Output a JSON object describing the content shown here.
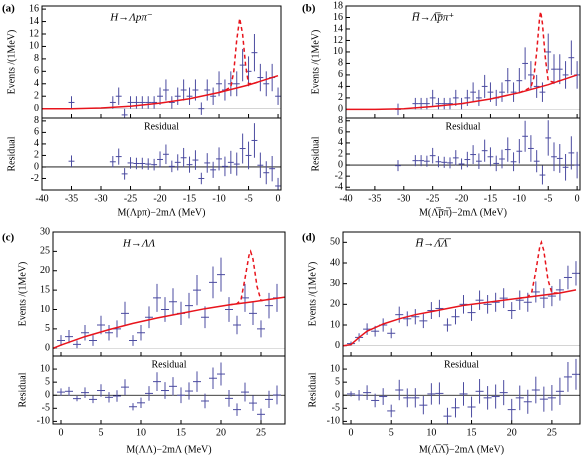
{
  "chart_data": [
    {
      "type": "errorbar",
      "panel_label": "(a)",
      "title": "H→Λpπ⁻",
      "xlabel": "M(Λpπ)−2mΛ (MeV)",
      "ylabel": "Events /(1MeV)",
      "residual_title": "Residual",
      "residual_ylabel": "Residual",
      "xlim": [
        -40,
        0.5
      ],
      "xticks": [
        -40,
        -35,
        -30,
        -25,
        -20,
        -15,
        -10,
        -5,
        0
      ],
      "ylim": [
        -1.5,
        16.5
      ],
      "yticks": [
        0,
        2,
        4,
        6,
        8,
        10,
        12,
        14,
        16
      ],
      "residual_ylim": [
        -4,
        8.5
      ],
      "residual_yticks": [
        -2,
        0,
        2,
        4,
        6,
        8
      ],
      "point_color": "#4b4ba0",
      "x": [
        -35,
        -28,
        -27,
        -26,
        -25,
        -24,
        -23,
        -22,
        -21,
        -20,
        -19,
        -18,
        -17,
        -16,
        -15,
        -14,
        -13,
        -12,
        -11,
        -10,
        -9,
        -8,
        -7,
        -6,
        -5,
        -4,
        -3,
        -2,
        -1,
        0
      ],
      "values": [
        1,
        1,
        2,
        -1,
        1,
        1,
        1,
        1,
        1,
        2,
        3,
        1,
        2,
        3,
        2,
        3,
        0,
        3,
        2,
        4,
        3,
        4,
        4,
        7,
        6,
        9,
        5,
        4,
        5,
        2
      ],
      "errors": [
        1,
        1,
        1.4,
        1,
        1,
        1,
        1,
        1,
        1,
        1.4,
        1.7,
        1,
        1.4,
        1.7,
        1.4,
        1.7,
        1,
        1.7,
        1.4,
        2,
        1.7,
        2,
        2,
        2.6,
        2.4,
        3,
        2.2,
        2,
        2.2,
        1.4
      ],
      "residuals": [
        1,
        0.9,
        1.8,
        -1.2,
        0.7,
        0.6,
        0.6,
        0.5,
        0.4,
        1.3,
        2.2,
        0.1,
        0.8,
        1.6,
        0.4,
        1.2,
        -2,
        0.7,
        -0.5,
        1.4,
        0.1,
        0.8,
        0.5,
        3.2,
        2,
        4.6,
        0.3,
        -1,
        -0.3,
        -3.3
      ],
      "fit": {
        "color": "#e8141c",
        "x": [
          -40,
          -35,
          -30,
          -25,
          -20,
          -15,
          -10,
          -5,
          0
        ],
        "y": [
          0,
          0,
          0.1,
          0.4,
          0.9,
          1.6,
          2.6,
          3.8,
          5.3
        ]
      },
      "signal": {
        "color": "#e8141c",
        "x": [
          -10,
          -9,
          -8,
          -7.5,
          -7,
          -6.5,
          -6,
          -5.5,
          -5,
          -4,
          -3
        ],
        "y": [
          2.6,
          2.9,
          3.5,
          6,
          11,
          14.5,
          12,
          7,
          4,
          4.1,
          4.4
        ]
      }
    },
    {
      "type": "errorbar",
      "panel_label": "(b)",
      "title": "H̅→Λ̅p̅π⁺",
      "xlabel": "M(Λ̅p̅π̅)−2mΛ (MeV)",
      "ylabel": "Events /(1MeV)",
      "residual_title": "Residual",
      "residual_ylabel": "Residual",
      "xlim": [
        -40,
        0.5
      ],
      "xticks": [
        -40,
        -35,
        -30,
        -25,
        -20,
        -15,
        -10,
        -5,
        0
      ],
      "ylim": [
        -1.5,
        18
      ],
      "yticks": [
        0,
        2,
        4,
        6,
        8,
        10,
        12,
        14,
        16,
        18
      ],
      "residual_ylim": [
        -4.5,
        8.5
      ],
      "residual_yticks": [
        -4,
        -2,
        0,
        2,
        4,
        6,
        8
      ],
      "point_color": "#4b4ba0",
      "x": [
        -31,
        -28,
        -27,
        -26,
        -25,
        -24,
        -23,
        -22,
        -21,
        -20,
        -19,
        -18,
        -17,
        -16,
        -15,
        -14,
        -13,
        -12,
        -11,
        -10,
        -9,
        -8,
        -7,
        -6,
        -5,
        -4,
        -3,
        -2,
        -1,
        0
      ],
      "values": [
        0,
        1,
        1,
        1,
        2,
        1,
        1,
        1,
        2,
        1,
        2,
        3,
        2,
        4,
        3,
        2,
        3,
        5,
        3,
        5,
        8,
        6,
        4,
        3,
        10,
        7,
        7,
        6,
        9,
        6
      ],
      "errors": [
        1,
        1,
        1,
        1,
        1.4,
        1,
        1,
        1,
        1.4,
        1,
        1.4,
        1.7,
        1.4,
        2,
        1.7,
        1.4,
        1.7,
        2.2,
        1.7,
        2.2,
        2.8,
        2.4,
        2,
        1.7,
        3.2,
        2.6,
        2.6,
        2.4,
        3,
        2.4
      ],
      "residuals": [
        -0.1,
        0.8,
        0.8,
        0.7,
        1.7,
        0.6,
        0.5,
        0.4,
        1.3,
        0.2,
        1,
        1.9,
        0.7,
        2.6,
        1.5,
        0.3,
        1.1,
        2.8,
        0.6,
        2.5,
        5.2,
        3,
        0.7,
        -1.8,
        4.9,
        1.5,
        1.2,
        -0.4,
        2.2,
        0
      ],
      "fit": {
        "color": "#e8141c",
        "x": [
          -40,
          -35,
          -30,
          -25,
          -20,
          -15,
          -10,
          -5,
          0
        ],
        "y": [
          0,
          0,
          0.1,
          0.5,
          1,
          1.8,
          2.9,
          4.3,
          6
        ]
      },
      "signal": {
        "color": "#e8141c",
        "x": [
          -10,
          -9,
          -8,
          -7.5,
          -7,
          -6.5,
          -6.3,
          -6,
          -5.5,
          -5,
          -4,
          -3
        ],
        "y": [
          2.9,
          3.3,
          3.9,
          5.5,
          10,
          16,
          17,
          15,
          9,
          5,
          4.7,
          5
        ]
      }
    },
    {
      "type": "errorbar",
      "panel_label": "(c)",
      "title": "H→ΛΛ",
      "xlabel": "M(ΛΛ)−2mΛ (MeV)",
      "ylabel": "Events /(1MeV)",
      "residual_title": "Residual",
      "residual_ylabel": "Residual",
      "xlim": [
        -1,
        28
      ],
      "xticks": [
        0,
        5,
        10,
        15,
        20,
        25
      ],
      "ylim": [
        -2,
        30
      ],
      "yticks": [
        0,
        5,
        10,
        15,
        20,
        25,
        30
      ],
      "residual_ylim": [
        -11,
        15
      ],
      "residual_yticks": [
        -10,
        -5,
        0,
        5,
        10
      ],
      "point_color": "#4b4ba0",
      "x": [
        0,
        1,
        2,
        3,
        4,
        5,
        6,
        7,
        8,
        9,
        10,
        11,
        12,
        13,
        14,
        15,
        16,
        17,
        18,
        19,
        20,
        21,
        22,
        23,
        24,
        25,
        26,
        27
      ],
      "values": [
        2,
        3,
        1,
        4,
        2,
        6,
        4,
        5,
        9,
        2,
        4,
        8,
        13,
        10,
        12,
        9,
        11,
        15,
        8,
        17,
        19,
        10,
        6,
        13,
        9,
        5,
        11,
        13
      ],
      "errors": [
        1.4,
        1.7,
        1,
        2,
        1.4,
        2.4,
        2,
        2.2,
        3,
        1.4,
        2,
        2.8,
        3.6,
        3.2,
        3.5,
        3,
        3.3,
        3.9,
        2.8,
        4.1,
        4.4,
        3.2,
        2.4,
        3.6,
        3,
        2.2,
        3.3,
        3.6
      ],
      "residuals": [
        1.2,
        1.5,
        -1.3,
        1,
        -1.6,
        1.8,
        -0.8,
        -0.3,
        3.1,
        -4.4,
        -2.9,
        0.7,
        5.2,
        1.8,
        3.4,
        0,
        1.6,
        5.2,
        -2.2,
        6.5,
        8.1,
        -1.2,
        -5.5,
        1.2,
        -3,
        -7.3,
        -1.6,
        0.1
      ],
      "fit": {
        "color": "#e8141c",
        "x": [
          -1,
          0,
          3,
          6,
          9,
          12,
          15,
          18,
          21,
          24,
          28
        ],
        "y": [
          0,
          0.8,
          3,
          4.8,
          6.4,
          7.8,
          9,
          10.2,
          11.2,
          12,
          13.2
        ]
      },
      "signal": {
        "color": "#e8141c",
        "x": [
          21,
          22,
          22.5,
          23,
          23.5,
          23.7,
          24,
          24.5,
          25,
          26
        ],
        "y": [
          11.2,
          11.5,
          12.5,
          18,
          24,
          25,
          23,
          16,
          12.3,
          12.6
        ]
      }
    },
    {
      "type": "errorbar",
      "panel_label": "(d)",
      "title": "H̅→Λ̅Λ̅",
      "xlabel": "M(Λ̅Λ̅)−2mΛ (MeV)",
      "ylabel": "Events /(1MeV)",
      "residual_title": "Residual",
      "residual_ylabel": "Residual",
      "xlim": [
        -1,
        28.5
      ],
      "xticks": [
        0,
        5,
        10,
        15,
        20,
        25
      ],
      "ylim": [
        -5,
        55
      ],
      "yticks": [
        0,
        10,
        20,
        30,
        40,
        50
      ],
      "residual_ylim": [
        -11,
        15
      ],
      "residual_yticks": [
        -10,
        -5,
        0,
        5,
        10
      ],
      "point_color": "#4b4ba0",
      "x": [
        0,
        1,
        2,
        3,
        4,
        5,
        6,
        7,
        8,
        9,
        10,
        11,
        12,
        13,
        14,
        15,
        16,
        17,
        18,
        19,
        20,
        21,
        22,
        23,
        24,
        25,
        26,
        27,
        28
      ],
      "values": [
        1,
        4,
        8,
        7,
        10,
        6,
        15,
        13,
        14,
        12,
        17,
        18,
        10,
        14,
        20,
        16,
        22,
        20,
        21,
        23,
        17,
        22,
        21,
        26,
        23,
        24,
        27,
        33,
        35
      ],
      "errors": [
        1,
        2,
        2.8,
        2.6,
        3.2,
        2.4,
        3.9,
        3.6,
        3.7,
        3.5,
        4.1,
        4.2,
        3.2,
        3.7,
        4.5,
        4,
        4.7,
        4.5,
        4.6,
        4.8,
        4.1,
        4.7,
        4.6,
        5.1,
        4.8,
        4.9,
        5.2,
        5.7,
        5.9
      ],
      "residuals": [
        0.5,
        0,
        1,
        -2,
        -0.5,
        -6,
        2,
        -1,
        -1,
        -3.8,
        0.5,
        0.7,
        -8,
        -4.8,
        0.5,
        -4.5,
        1.5,
        -1,
        -0.5,
        1,
        -5.5,
        -1,
        -2.5,
        2,
        -1.5,
        -1,
        1.5,
        7,
        8
      ],
      "fit": {
        "color": "#e8141c",
        "x": [
          -1,
          0,
          1,
          2,
          4,
          6,
          8,
          10,
          14,
          18,
          22,
          26,
          28
        ],
        "y": [
          0,
          0.5,
          4,
          7,
          10.5,
          13,
          15,
          16.5,
          19.5,
          21.5,
          23.5,
          25.5,
          27
        ]
      },
      "signal": {
        "color": "#e8141c",
        "x": [
          21,
          22,
          22.5,
          23,
          23.5,
          23.7,
          24,
          24.5,
          25,
          26
        ],
        "y": [
          23,
          23.5,
          26,
          36,
          48,
          50,
          46,
          32,
          25.5,
          25.5
        ]
      }
    }
  ]
}
